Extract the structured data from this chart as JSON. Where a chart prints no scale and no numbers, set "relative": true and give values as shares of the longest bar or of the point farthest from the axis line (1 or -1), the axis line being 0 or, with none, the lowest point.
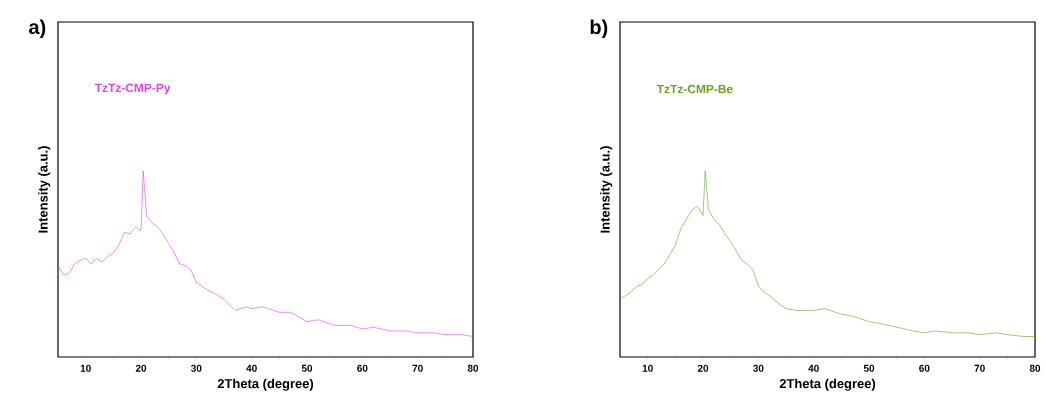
{
  "chart_data": [
    {
      "type": "line",
      "title": "a)",
      "xlabel": "2Theta (degree)",
      "ylabel": "Intensity (a.u.)",
      "relative": true,
      "xlim": [
        5,
        80
      ],
      "xticks": [
        10,
        20,
        30,
        40,
        50,
        60,
        70,
        80
      ],
      "legend": false,
      "marker": "none",
      "line_style": "solid",
      "x": [
        5,
        6,
        7,
        8,
        9,
        10,
        11,
        12,
        13,
        14,
        15,
        16,
        17,
        18,
        19,
        20,
        20.4,
        21,
        22,
        23,
        24,
        25,
        26,
        27,
        28,
        29,
        30,
        31,
        32,
        34,
        35,
        37,
        39,
        40,
        42,
        45,
        47,
        50,
        52,
        55,
        58,
        60,
        62,
        65,
        68,
        70,
        73,
        75,
        78,
        80
      ],
      "series": [
        {
          "name": "TzTz-CMP-Py",
          "color": "#d946ef",
          "values": [
            0.49,
            0.44,
            0.45,
            0.5,
            0.52,
            0.53,
            0.5,
            0.53,
            0.51,
            0.54,
            0.56,
            0.6,
            0.67,
            0.66,
            0.7,
            0.68,
            1.0,
            0.76,
            0.72,
            0.7,
            0.66,
            0.61,
            0.56,
            0.5,
            0.49,
            0.47,
            0.4,
            0.38,
            0.36,
            0.33,
            0.31,
            0.25,
            0.27,
            0.26,
            0.27,
            0.24,
            0.24,
            0.19,
            0.2,
            0.17,
            0.17,
            0.15,
            0.16,
            0.14,
            0.14,
            0.13,
            0.13,
            0.12,
            0.12,
            0.11
          ]
        }
      ]
    },
    {
      "type": "line",
      "title": "b)",
      "xlabel": "2Theta (degree)",
      "ylabel": "Intensity (a.u.)",
      "relative": true,
      "xlim": [
        5,
        80
      ],
      "xticks": [
        10,
        20,
        30,
        40,
        50,
        60,
        70,
        80
      ],
      "legend": false,
      "marker": "none",
      "line_style": "solid",
      "x": [
        5,
        6,
        7,
        8,
        9,
        10,
        11,
        12,
        13,
        14,
        15,
        16,
        17,
        18,
        19,
        20,
        20.4,
        21,
        22,
        23,
        24,
        25,
        26,
        27,
        28,
        29,
        30,
        31,
        32,
        34,
        35,
        37,
        38,
        40,
        42,
        45,
        47,
        50,
        52,
        55,
        58,
        60,
        62,
        65,
        68,
        70,
        73,
        75,
        78,
        80
      ],
      "series": [
        {
          "name": "TzTz-CMP-Be",
          "color": "#6aa121",
          "values": [
            0.31,
            0.33,
            0.35,
            0.38,
            0.39,
            0.42,
            0.44,
            0.47,
            0.5,
            0.55,
            0.6,
            0.69,
            0.74,
            0.79,
            0.81,
            0.76,
            1.0,
            0.79,
            0.74,
            0.71,
            0.66,
            0.62,
            0.57,
            0.52,
            0.5,
            0.47,
            0.38,
            0.35,
            0.33,
            0.28,
            0.26,
            0.25,
            0.25,
            0.25,
            0.26,
            0.23,
            0.22,
            0.19,
            0.18,
            0.16,
            0.14,
            0.13,
            0.14,
            0.13,
            0.13,
            0.12,
            0.13,
            0.12,
            0.11,
            0.11
          ]
        }
      ]
    }
  ]
}
